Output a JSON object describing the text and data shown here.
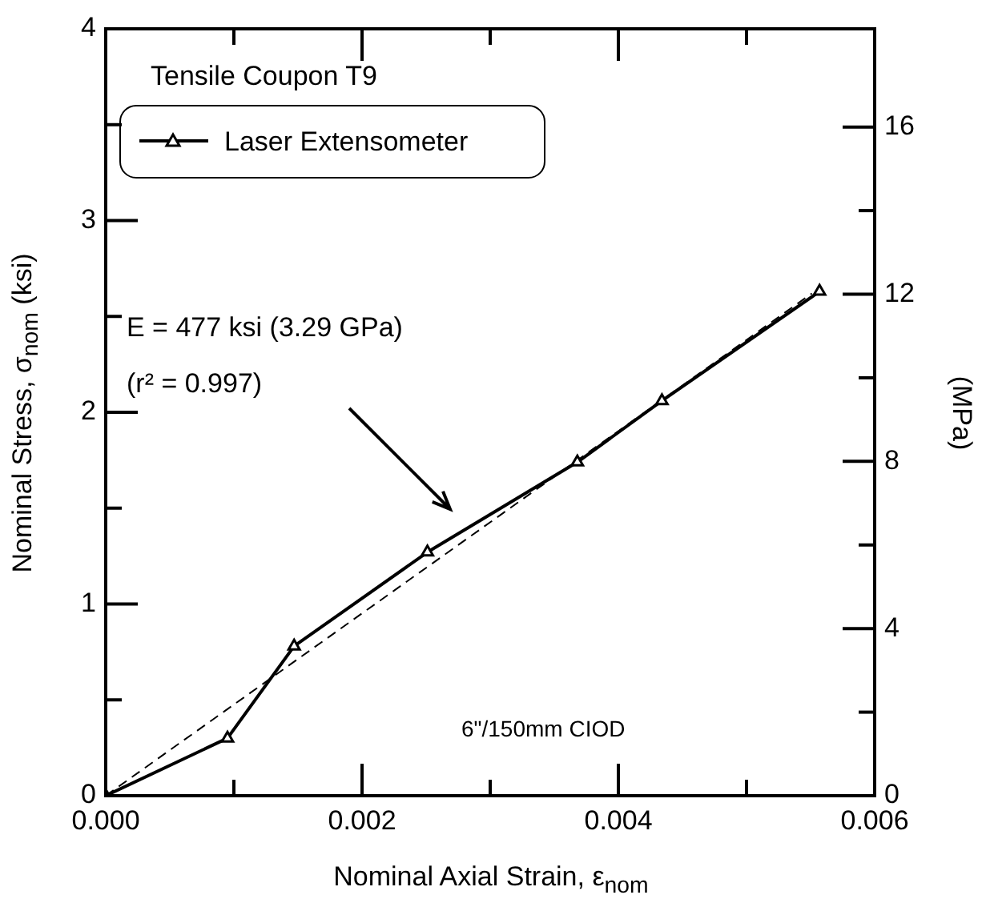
{
  "chart_data": {
    "type": "line",
    "title": "Tensile Coupon T9",
    "xlabel": "Nominal Axial Strain, ε$_{nom}$",
    "ylabel": "Nominal Stress, σ$_{nom}$ (ksi)",
    "y2label": "(MPa)",
    "x": [
      0,
      0.00095,
      0.00147,
      0.00251,
      0.00368,
      0.00434,
      0.00557
    ],
    "series": [
      {
        "name": "Laser Extensometer",
        "color": "#000000",
        "values": [
          0,
          0.3,
          0.78,
          1.27,
          1.74,
          2.06,
          2.63
        ],
        "marker": "triangle",
        "line_style": "solid"
      },
      {
        "type": "line",
        "color": "#000000",
        "x": [
          0,
          0.00551
        ],
        "values": [
          0,
          2.62
        ],
        "marker": "none",
        "line_style": "dashed"
      }
    ],
    "xlim": [
      0,
      0.006
    ],
    "xticks": [
      {
        "value": 0,
        "label": "0.000"
      },
      {
        "value": 0.001,
        "label": null
      },
      {
        "value": 0.002,
        "label": "0.002"
      },
      {
        "value": 0.003,
        "label": null
      },
      {
        "value": 0.004,
        "label": "0.004"
      },
      {
        "value": 0.005,
        "label": null
      },
      {
        "value": 0.006,
        "label": "0.006"
      }
    ],
    "ylim": [
      0,
      4
    ],
    "yticks": [
      0,
      {
        "value": 0.5,
        "label": null
      },
      1,
      {
        "value": 1.5,
        "label": null
      },
      2,
      {
        "value": 2.5,
        "label": null
      },
      3,
      {
        "value": 3.5,
        "label": null
      },
      4
    ],
    "y2lim": [
      0,
      18.35
    ],
    "y2ticks": [
      0,
      {
        "value": 2,
        "label": null
      },
      4,
      {
        "value": 6,
        "label": null
      },
      8,
      {
        "value": 10,
        "label": null
      },
      12,
      {
        "value": 14,
        "label": null
      },
      16
    ],
    "annotations": [
      "E = 477 ksi (3.29 GPa)",
      "(r² = 0.997)",
      "6\"/150mm CIOD"
    ],
    "legend": "top left",
    "grid": false
  }
}
